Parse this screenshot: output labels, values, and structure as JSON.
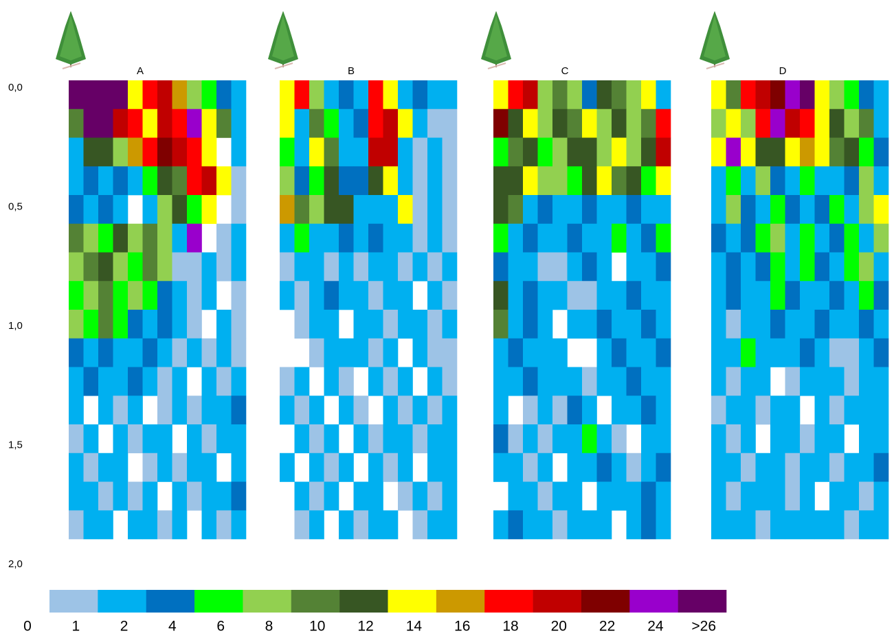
{
  "chart_data": {
    "type": "heatmap",
    "ylim": [
      0,
      2
    ],
    "yticks": [
      {
        "value": 0,
        "label": "0,0"
      },
      {
        "value": 0.5,
        "label": "0,5"
      },
      {
        "value": 1,
        "label": "1,0"
      },
      {
        "value": 1.5,
        "label": "1,5"
      },
      {
        "value": 2,
        "label": "2,0"
      }
    ],
    "color_scale": {
      "ticks": [
        0,
        1,
        2,
        4,
        6,
        8,
        10,
        12,
        14,
        16,
        18,
        20,
        22,
        24,
        {
          "value": 26,
          "label": ">26"
        }
      ],
      "colors": [
        "#9dc3e6",
        "#00b0f0",
        "#0070c0",
        "#00ff00",
        "#92d050",
        "#548235",
        "#375623",
        "#ffff00",
        "#cc9900",
        "#ff0000",
        "#c00000",
        "#7f0000",
        "#9900cc",
        "#660066"
      ]
    },
    "panels": [
      {
        "label": "A",
        "cells": [
          [
            27,
            27,
            27,
            27,
            13,
            17,
            19,
            15,
            7,
            5,
            3,
            1
          ],
          [
            9,
            27,
            27,
            19,
            17,
            13,
            19,
            17,
            23,
            13,
            9,
            1
          ],
          [
            1,
            11,
            11,
            7,
            15,
            17,
            21,
            19,
            17,
            13,
            null,
            1
          ],
          [
            1,
            3,
            1,
            3,
            1,
            5,
            11,
            9,
            17,
            19,
            13,
            0
          ],
          [
            3,
            1,
            3,
            1,
            null,
            1,
            7,
            11,
            5,
            13,
            null,
            0
          ],
          [
            9,
            7,
            5,
            11,
            7,
            9,
            7,
            1,
            23,
            null,
            0,
            1
          ],
          [
            7,
            9,
            11,
            7,
            5,
            9,
            7,
            0,
            0,
            1,
            0,
            1
          ],
          [
            5,
            7,
            9,
            5,
            7,
            5,
            3,
            1,
            0,
            1,
            null,
            0
          ],
          [
            7,
            5,
            9,
            5,
            3,
            1,
            3,
            1,
            0,
            null,
            1,
            0
          ],
          [
            3,
            1,
            3,
            1,
            1,
            3,
            1,
            0,
            1,
            0,
            1,
            0
          ],
          [
            1,
            3,
            1,
            1,
            3,
            1,
            0,
            1,
            null,
            1,
            0,
            1
          ],
          [
            1,
            null,
            1,
            0,
            1,
            null,
            0,
            1,
            0,
            1,
            1,
            3
          ],
          [
            0,
            1,
            null,
            1,
            0,
            1,
            1,
            null,
            1,
            0,
            1,
            1
          ],
          [
            1,
            0,
            1,
            1,
            null,
            0,
            1,
            0,
            1,
            1,
            null,
            1
          ],
          [
            1,
            1,
            0,
            1,
            0,
            1,
            null,
            1,
            0,
            1,
            1,
            3
          ],
          [
            0,
            1,
            1,
            null,
            1,
            1,
            0,
            1,
            null,
            1,
            0,
            1
          ]
        ]
      },
      {
        "label": "B",
        "cells": [
          [
            13,
            17,
            7,
            1,
            3,
            1,
            17,
            13,
            1,
            3,
            1,
            1
          ],
          [
            13,
            1,
            9,
            5,
            1,
            3,
            17,
            19,
            13,
            1,
            0,
            0
          ],
          [
            5,
            1,
            13,
            9,
            1,
            1,
            19,
            19,
            1,
            0,
            1,
            0
          ],
          [
            7,
            3,
            5,
            11,
            3,
            3,
            11,
            13,
            1,
            0,
            1,
            0
          ],
          [
            15,
            9,
            7,
            11,
            11,
            1,
            1,
            1,
            13,
            0,
            1,
            0
          ],
          [
            1,
            5,
            1,
            1,
            3,
            1,
            3,
            1,
            1,
            0,
            1,
            0
          ],
          [
            0,
            1,
            1,
            0,
            1,
            0,
            1,
            1,
            0,
            1,
            0,
            1
          ],
          [
            1,
            0,
            1,
            3,
            1,
            1,
            0,
            1,
            1,
            null,
            1,
            0
          ],
          [
            null,
            0,
            1,
            1,
            null,
            1,
            1,
            0,
            1,
            1,
            0,
            1
          ],
          [
            null,
            null,
            0,
            1,
            1,
            1,
            0,
            1,
            null,
            1,
            0,
            0
          ],
          [
            0,
            1,
            null,
            1,
            0,
            null,
            1,
            0,
            1,
            null,
            1,
            0
          ],
          [
            1,
            0,
            1,
            null,
            1,
            0,
            null,
            1,
            0,
            1,
            0,
            1
          ],
          [
            null,
            1,
            0,
            1,
            null,
            1,
            0,
            1,
            1,
            0,
            1,
            1
          ],
          [
            1,
            null,
            1,
            0,
            1,
            null,
            1,
            0,
            1,
            null,
            1,
            1
          ],
          [
            null,
            1,
            0,
            1,
            null,
            1,
            1,
            null,
            0,
            1,
            0,
            1
          ],
          [
            null,
            0,
            1,
            null,
            1,
            0,
            1,
            1,
            null,
            0,
            1,
            1
          ]
        ]
      },
      {
        "label": "C",
        "cells": [
          [
            13,
            17,
            19,
            7,
            9,
            7,
            3,
            11,
            9,
            7,
            13,
            1
          ],
          [
            21,
            11,
            13,
            7,
            11,
            9,
            13,
            7,
            11,
            7,
            9,
            17
          ],
          [
            5,
            9,
            11,
            5,
            7,
            11,
            11,
            7,
            13,
            7,
            11,
            19
          ],
          [
            11,
            11,
            13,
            7,
            7,
            5,
            11,
            13,
            9,
            11,
            5,
            13
          ],
          [
            11,
            9,
            1,
            3,
            1,
            1,
            3,
            1,
            1,
            3,
            1,
            1
          ],
          [
            5,
            1,
            3,
            1,
            1,
            3,
            1,
            1,
            5,
            1,
            3,
            5
          ],
          [
            3,
            1,
            1,
            0,
            0,
            1,
            3,
            1,
            null,
            1,
            1,
            3
          ],
          [
            11,
            1,
            3,
            1,
            1,
            0,
            0,
            1,
            1,
            3,
            1,
            1
          ],
          [
            9,
            1,
            3,
            1,
            null,
            1,
            1,
            3,
            1,
            1,
            3,
            1
          ],
          [
            1,
            3,
            1,
            1,
            1,
            null,
            null,
            1,
            3,
            1,
            1,
            3
          ],
          [
            1,
            1,
            3,
            1,
            1,
            1,
            0,
            1,
            1,
            3,
            1,
            1
          ],
          [
            1,
            null,
            0,
            1,
            0,
            3,
            1,
            null,
            1,
            1,
            3,
            1
          ],
          [
            3,
            0,
            1,
            0,
            1,
            1,
            5,
            1,
            0,
            null,
            1,
            1
          ],
          [
            1,
            1,
            0,
            1,
            null,
            1,
            1,
            3,
            1,
            0,
            1,
            3
          ],
          [
            null,
            1,
            1,
            0,
            1,
            1,
            null,
            1,
            1,
            1,
            3,
            1
          ],
          [
            1,
            3,
            1,
            1,
            0,
            1,
            1,
            1,
            null,
            1,
            3,
            1
          ]
        ]
      },
      {
        "label": "D",
        "cells": [
          [
            13,
            9,
            17,
            19,
            21,
            23,
            27,
            13,
            7,
            5,
            3,
            1
          ],
          [
            7,
            13,
            7,
            17,
            23,
            19,
            17,
            13,
            11,
            7,
            9,
            1
          ],
          [
            13,
            23,
            13,
            11,
            11,
            13,
            15,
            13,
            9,
            11,
            5,
            3
          ],
          [
            1,
            5,
            1,
            7,
            3,
            1,
            5,
            1,
            1,
            3,
            7,
            1
          ],
          [
            1,
            7,
            3,
            1,
            5,
            3,
            1,
            3,
            5,
            1,
            7,
            13
          ],
          [
            3,
            1,
            3,
            5,
            7,
            1,
            5,
            1,
            3,
            5,
            1,
            7
          ],
          [
            1,
            3,
            1,
            3,
            5,
            1,
            5,
            3,
            1,
            5,
            7,
            1
          ],
          [
            1,
            3,
            1,
            1,
            5,
            3,
            1,
            1,
            3,
            1,
            5,
            3
          ],
          [
            1,
            0,
            1,
            1,
            3,
            1,
            1,
            3,
            1,
            1,
            3,
            1
          ],
          [
            1,
            1,
            5,
            1,
            1,
            1,
            3,
            1,
            0,
            0,
            1,
            3
          ],
          [
            1,
            0,
            1,
            1,
            null,
            0,
            1,
            1,
            1,
            0,
            1,
            1
          ],
          [
            0,
            1,
            1,
            0,
            1,
            1,
            null,
            1,
            0,
            1,
            1,
            1
          ],
          [
            1,
            0,
            1,
            null,
            1,
            1,
            0,
            1,
            1,
            null,
            1,
            1
          ],
          [
            1,
            1,
            0,
            1,
            1,
            0,
            1,
            1,
            0,
            1,
            1,
            3
          ],
          [
            1,
            0,
            1,
            1,
            1,
            0,
            1,
            null,
            1,
            1,
            0,
            1
          ],
          [
            1,
            1,
            1,
            0,
            1,
            1,
            1,
            1,
            1,
            0,
            1,
            1
          ]
        ]
      }
    ]
  }
}
